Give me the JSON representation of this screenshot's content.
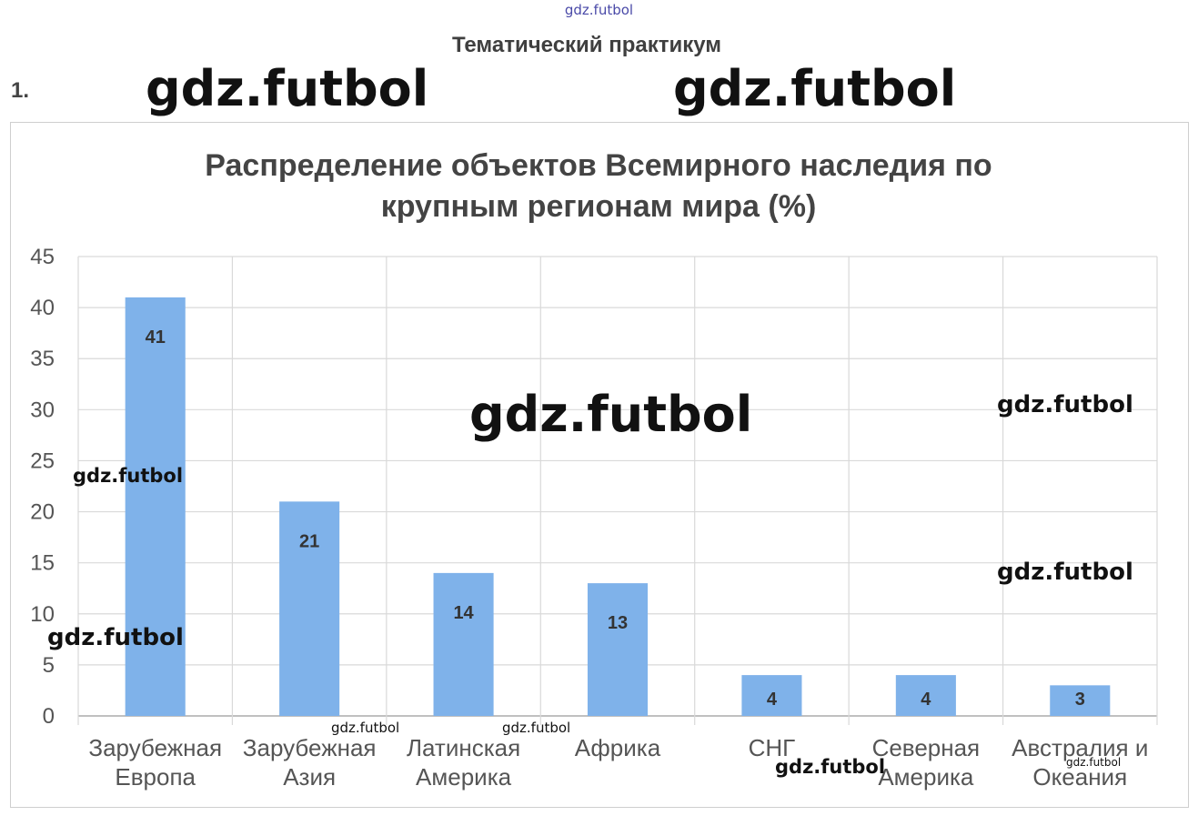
{
  "watermark": "gdz.futbol",
  "page": {
    "section_heading": "Тематический практикум",
    "task_number": "1."
  },
  "colors": {
    "bar": "#7fb2ea",
    "grid": "#d9d9d9",
    "axis": "#9a9a9a"
  },
  "chart_data": {
    "type": "bar",
    "title_lines": [
      "Распределение объектов Всемирного наследия по",
      "крупным регионам мира (%)"
    ],
    "categories": [
      [
        "Зарубежная",
        "Европа"
      ],
      [
        "Зарубежная",
        "Азия"
      ],
      [
        "Латинская",
        "Америка"
      ],
      [
        "Африка"
      ],
      [
        "СНГ"
      ],
      [
        "Северная",
        "Америка"
      ],
      [
        "Австралия и",
        "Океания"
      ]
    ],
    "values": [
      41,
      21,
      14,
      13,
      4,
      4,
      3
    ],
    "data_labels": [
      "41",
      "21",
      "14",
      "13",
      "4",
      "4",
      "3"
    ],
    "y_ticks": [
      0,
      5,
      10,
      15,
      20,
      25,
      30,
      35,
      40,
      45
    ],
    "ylim": [
      0,
      45
    ],
    "xlabel": "",
    "ylabel": "",
    "grid": true,
    "legend": "none"
  }
}
